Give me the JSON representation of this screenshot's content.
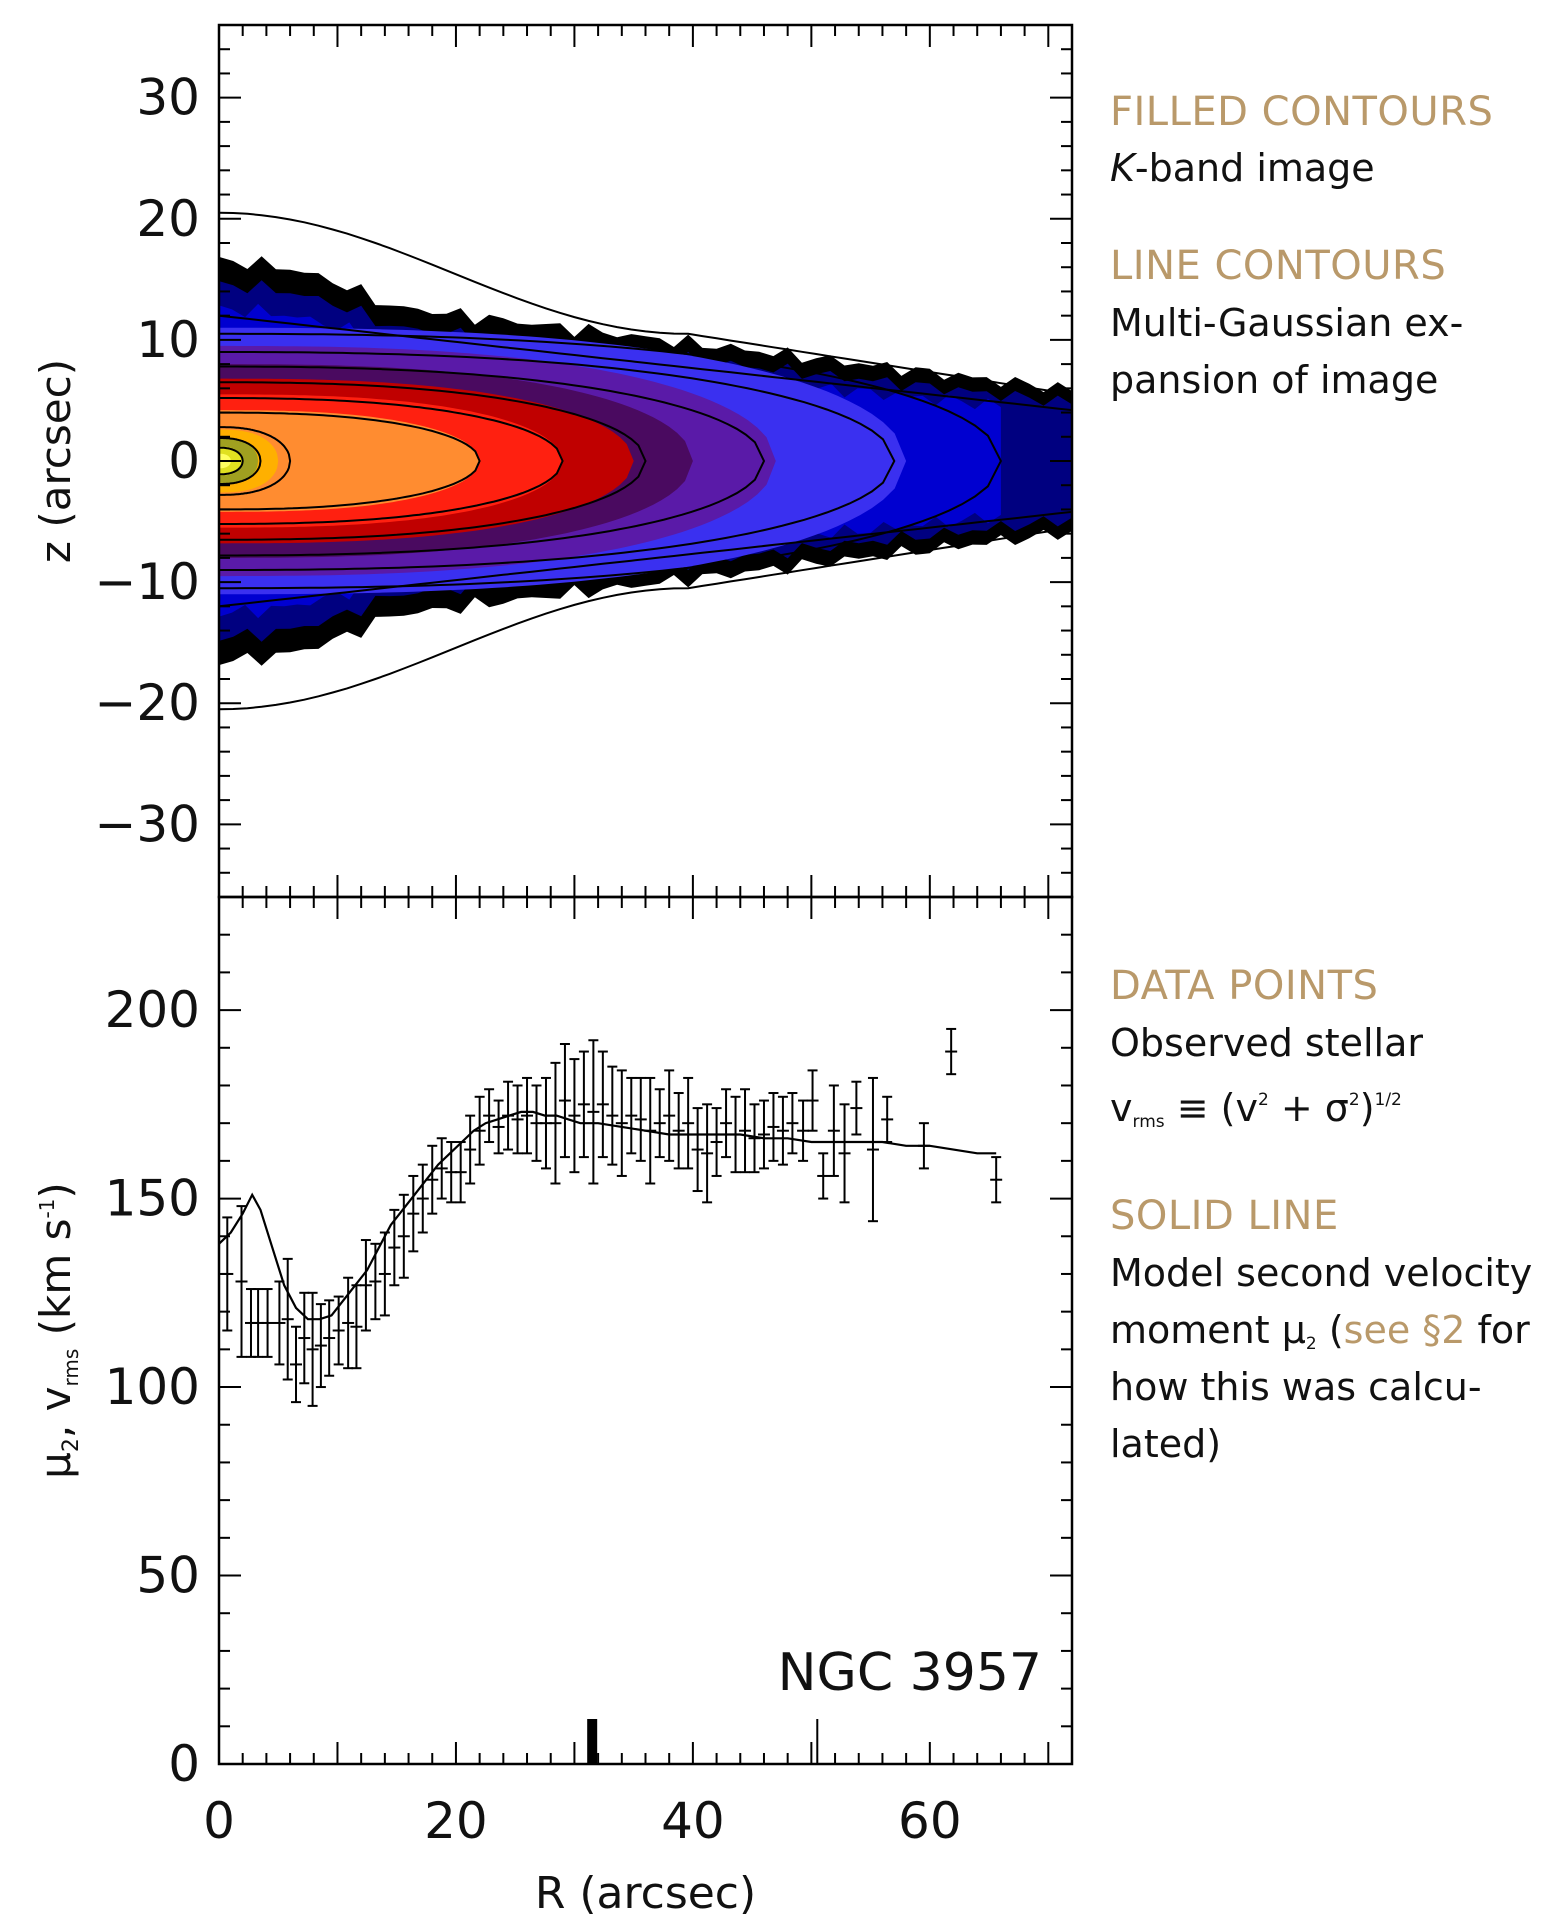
{
  "annotations": {
    "filled": {
      "heading": "FILLED CONTOURS",
      "body_italic": "K",
      "body_rest": "-band image"
    },
    "line": {
      "heading": "LINE CONTOURS",
      "line1": "Multi-Gaussian ex-",
      "line2": "pansion of image"
    },
    "points": {
      "heading": "DATA POINTS",
      "line1": "Observed stellar",
      "sym_v": "v",
      "sub_rms": "rms",
      "equiv": "≡ (v",
      "sup2": "2",
      "plus_sigma": " + σ",
      "sup2b": "2",
      "close": ")",
      "sup_half": "1/2"
    },
    "solid": {
      "heading": "SOLID LINE",
      "line1": "Model second velocity",
      "line2a": "moment μ",
      "sub2": "2",
      "paren": " (",
      "link": "see §2",
      "line2b": " for",
      "line3": "how this was calcu-",
      "line4": "lated)"
    }
  },
  "chart_data": [
    {
      "type": "contour",
      "panel": "top",
      "xlabel": "",
      "ylabel": "z (arcsec)",
      "xlim": [
        0,
        72
      ],
      "ylim": [
        -36,
        36
      ],
      "yticks": [
        30,
        20,
        10,
        0,
        -10,
        -20,
        -30
      ],
      "ytick_labels": [
        "30",
        "20",
        "10",
        "0",
        "−10",
        "−20",
        "−30"
      ],
      "filled_levels": [
        {
          "color": "#000000",
          "r_max": 72,
          "z_half": 16.5
        },
        {
          "color": "#000080",
          "r_max": 72,
          "z_half": 14.5
        },
        {
          "color": "#0000d0",
          "r_max": 66,
          "z_half": 12.5
        },
        {
          "color": "#3a30f0",
          "r_max": 58,
          "z_half": 11.0
        },
        {
          "color": "#5a1aa8",
          "r_max": 47,
          "z_half": 9.5
        },
        {
          "color": "#4a0a60",
          "r_max": 40,
          "z_half": 8.0
        },
        {
          "color": "#c00000",
          "r_max": 35,
          "z_half": 6.8
        },
        {
          "color": "#ff2010",
          "r_max": 29,
          "z_half": 5.5
        },
        {
          "color": "#ff8c30",
          "r_max": 22,
          "z_half": 4.2
        },
        {
          "color": "#ffb000",
          "r_max": 5,
          "z_half": 2.6
        },
        {
          "color": "#a0a020",
          "r_max": 3.3,
          "z_half": 1.9
        },
        {
          "color": "#e0e020",
          "r_max": 2.0,
          "z_half": 1.2
        },
        {
          "color": "#ffff60",
          "r_max": 1.0,
          "z_half": 0.6
        }
      ],
      "line_levels": [
        {
          "r_max": 72,
          "z_half": 20.5,
          "z_end": 5.5
        },
        {
          "r_max": 72,
          "z_half": 12.0,
          "z_end": 4.2
        },
        {
          "r_max": 66,
          "z_half": 10.5
        },
        {
          "r_max": 57,
          "z_half": 9.0
        },
        {
          "r_max": 46,
          "z_half": 7.8
        },
        {
          "r_max": 36,
          "z_half": 6.5
        },
        {
          "r_max": 29,
          "z_half": 5.2
        },
        {
          "r_max": 22,
          "z_half": 4.0
        },
        {
          "r_max": 6,
          "z_half": 2.8
        },
        {
          "r_max": 3.5,
          "z_half": 1.9
        },
        {
          "r_max": 2.0,
          "z_half": 1.1
        }
      ]
    },
    {
      "type": "scatter",
      "panel": "bottom",
      "xlabel": "R (arcsec)",
      "ylabel": "μ2, vrms (km s-1)",
      "xlim": [
        0,
        72
      ],
      "ylim": [
        0,
        230
      ],
      "xticks": [
        0,
        20,
        40,
        60
      ],
      "yticks": [
        0,
        50,
        100,
        150,
        200
      ],
      "label": "NGC 3957",
      "x": [
        0.7,
        1.9,
        2.7,
        3.3,
        4.1,
        5.1,
        5.8,
        6.5,
        7.2,
        7.9,
        8.6,
        9.3,
        10.1,
        10.9,
        11.6,
        12.4,
        13.2,
        14.0,
        14.8,
        15.6,
        16.4,
        17.2,
        18.0,
        18.8,
        19.6,
        20.4,
        21.2,
        22.0,
        22.8,
        23.6,
        24.4,
        25.2,
        26.0,
        26.8,
        27.6,
        28.4,
        29.2,
        30.0,
        30.8,
        31.6,
        32.4,
        33.2,
        34.0,
        34.8,
        35.6,
        36.4,
        37.2,
        38.0,
        38.8,
        39.6,
        40.4,
        41.2,
        42.0,
        42.8,
        43.6,
        44.4,
        45.2,
        46.0,
        46.8,
        47.6,
        48.4,
        49.3,
        50.1,
        51.0,
        51.9,
        52.8,
        53.8,
        55.2,
        56.4,
        59.5,
        61.8,
        65.6
      ],
      "values": [
        130,
        128,
        117,
        117,
        117,
        117,
        118,
        106,
        113,
        110,
        111,
        113,
        115,
        117,
        116,
        127,
        128,
        130,
        137,
        140,
        146,
        150,
        155,
        158,
        157,
        157,
        163,
        168,
        172,
        169,
        172,
        171,
        172,
        170,
        170,
        170,
        176,
        172,
        175,
        173,
        175,
        172,
        170,
        172,
        171,
        168,
        170,
        172,
        168,
        170,
        163,
        162,
        165,
        170,
        167,
        168,
        166,
        167,
        169,
        168,
        170,
        168,
        176,
        156,
        168,
        162,
        174,
        163,
        171,
        164,
        189,
        155
      ],
      "errors": [
        15,
        20,
        9,
        9,
        9,
        11,
        16,
        10,
        12,
        15,
        11,
        10,
        9,
        12,
        11,
        12,
        10,
        11,
        10,
        11,
        10,
        9,
        9,
        8,
        8,
        8,
        9,
        9,
        7,
        7,
        9,
        9,
        10,
        10,
        12,
        16,
        15,
        15,
        14,
        19,
        14,
        13,
        14,
        10,
        11,
        14,
        9,
        12,
        10,
        12,
        11,
        13,
        9,
        9,
        10,
        11,
        9,
        9,
        9,
        9,
        8,
        8,
        8,
        6,
        12,
        13,
        7,
        19,
        6,
        6,
        6,
        6
      ],
      "model_x": [
        0,
        1,
        2,
        2.8,
        3.5,
        4.5,
        5.5,
        6.5,
        7.5,
        8.5,
        9.5,
        10.5,
        11.5,
        12.5,
        13.5,
        14.5,
        15.5,
        16.5,
        17.5,
        18.5,
        19.5,
        20.5,
        21.5,
        22.5,
        23.5,
        24.5,
        25.5,
        26.5,
        27.5,
        28.5,
        29.5,
        30.5,
        32,
        34,
        36,
        38,
        40,
        42,
        44,
        46,
        48,
        50,
        52,
        54,
        56,
        58,
        60,
        62,
        64,
        65.6
      ],
      "model_y": [
        138,
        141,
        146,
        151,
        147,
        137,
        127,
        121,
        118,
        118,
        119,
        123,
        127,
        131,
        137,
        143,
        147,
        151,
        155,
        159,
        162,
        165,
        168,
        170,
        171,
        172,
        173,
        173,
        172,
        172,
        171,
        170,
        170,
        169,
        168,
        167,
        167,
        167,
        167,
        166,
        166,
        165,
        165,
        165,
        165,
        164,
        164,
        163,
        162,
        162
      ],
      "ticks_bottom": [
        {
          "x": 31.5,
          "kind": "thick"
        },
        {
          "x": 50.5,
          "kind": "thin"
        }
      ]
    }
  ]
}
